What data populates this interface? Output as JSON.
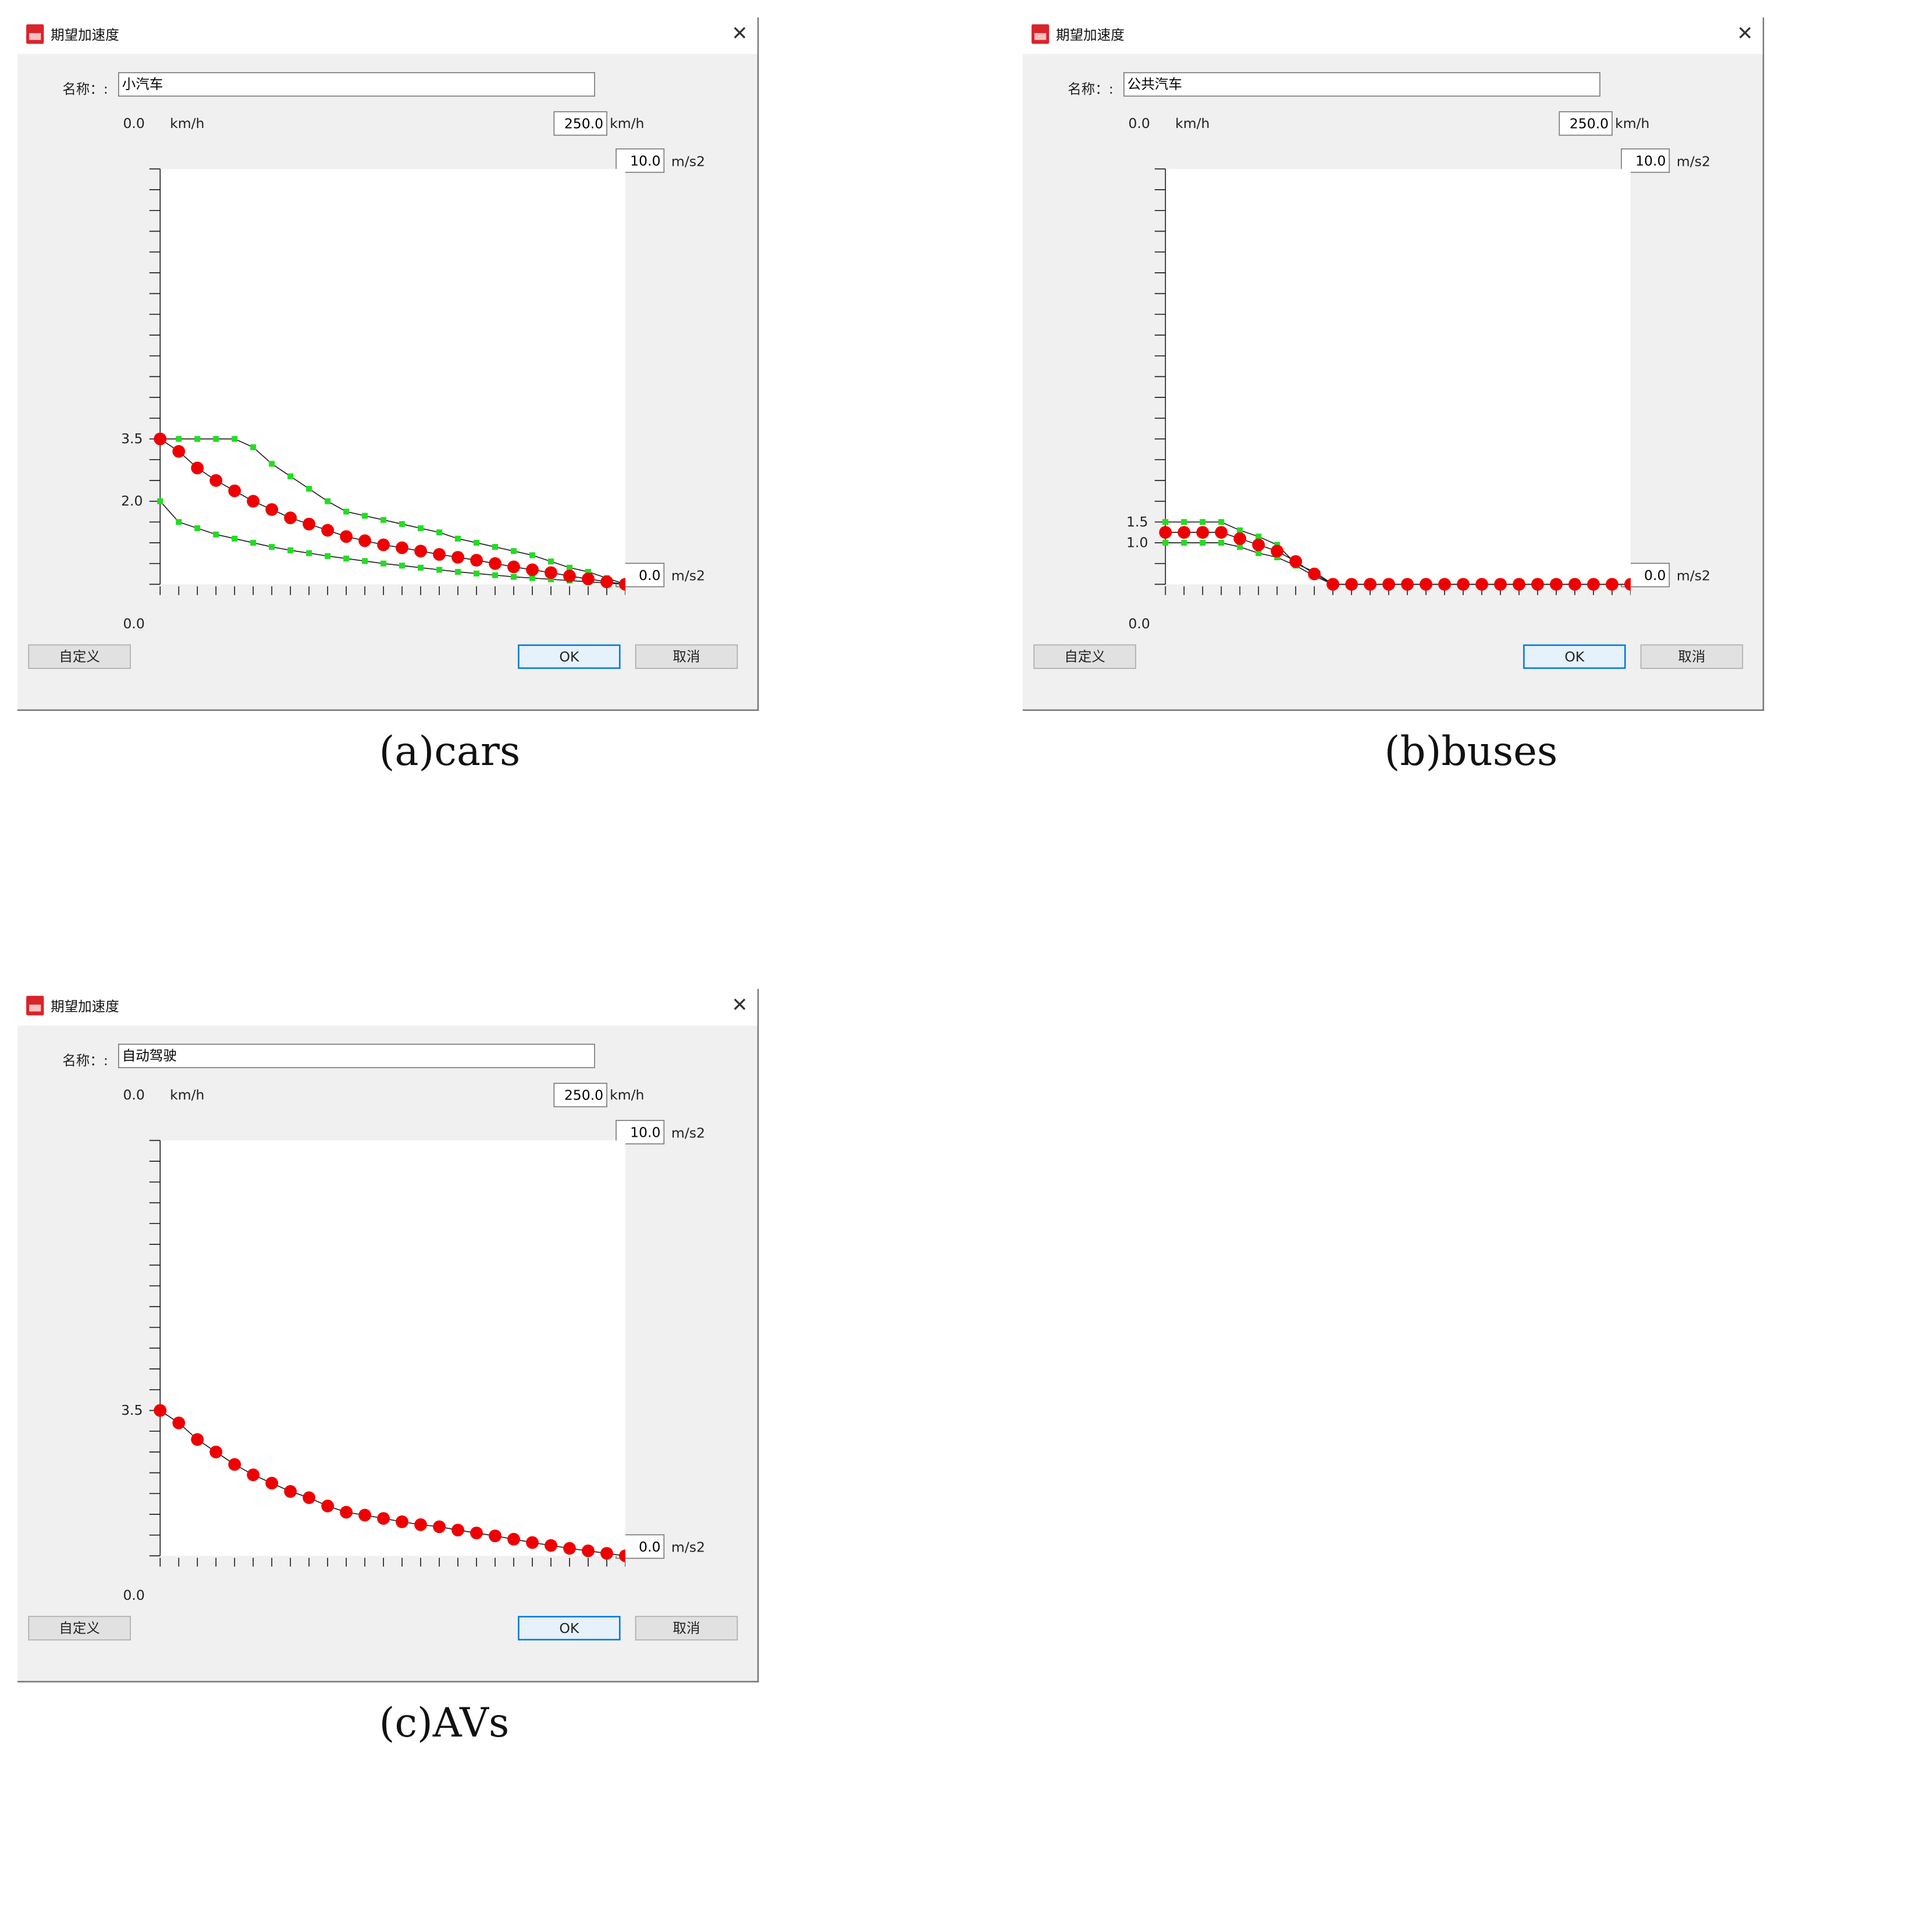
{
  "dialog": {
    "title": "期望加速度",
    "close_glyph": "✕",
    "name_label": "名称：:",
    "speed_min_label": "0.0",
    "speed_unit": "km/h",
    "speed_max_value": "250.0",
    "accel_max_value": "10.0",
    "accel_min_value": "0.0",
    "accel_unit": "m/s2",
    "x_origin_label": "0.0",
    "custom_button": "自定义",
    "ok_button": "OK",
    "cancel_button": "取消"
  },
  "panels": [
    {
      "name_value": "小汽车",
      "caption": "(a)cars",
      "ytick_labels": [
        {
          "text": "3.5",
          "value": 3.5
        },
        {
          "text": "2.0",
          "value": 2.0
        }
      ]
    },
    {
      "name_value": "公共汽车",
      "caption": "(b)buses",
      "ytick_labels": [
        {
          "text": "1.5",
          "value": 1.5
        },
        {
          "text": "1.0",
          "value": 1.0
        }
      ]
    },
    {
      "name_value": "自动驾驶",
      "caption": "(c)AVs",
      "ytick_labels": [
        {
          "text": "3.5",
          "value": 3.5
        }
      ]
    }
  ],
  "colors": {
    "median_marker": "#ee0000",
    "bound_marker": "#22dd22",
    "curve_line": "#222222",
    "ok_border": "#0078d7",
    "title_icon": "#d9242a"
  },
  "chart_data": [
    {
      "type": "line",
      "x_unit": "km/h",
      "y_unit": "m/s2",
      "xlim": [
        0,
        250
      ],
      "ylim": [
        0,
        10
      ],
      "x": [
        0,
        10,
        20,
        30,
        40,
        50,
        60,
        70,
        80,
        90,
        100,
        110,
        120,
        130,
        140,
        150,
        160,
        170,
        180,
        190,
        200,
        210,
        220,
        230,
        240,
        250
      ],
      "series": [
        {
          "role": "max",
          "values": [
            3.5,
            3.5,
            3.5,
            3.5,
            3.5,
            3.3,
            2.9,
            2.6,
            2.3,
            2.0,
            1.75,
            1.65,
            1.55,
            1.45,
            1.35,
            1.25,
            1.1,
            1.0,
            0.9,
            0.8,
            0.7,
            0.55,
            0.4,
            0.3,
            0.15,
            0.0
          ]
        },
        {
          "role": "median",
          "values": [
            3.5,
            3.2,
            2.8,
            2.5,
            2.25,
            2.0,
            1.8,
            1.6,
            1.45,
            1.3,
            1.15,
            1.05,
            0.95,
            0.88,
            0.8,
            0.72,
            0.65,
            0.58,
            0.5,
            0.42,
            0.35,
            0.28,
            0.2,
            0.13,
            0.06,
            0.0
          ]
        },
        {
          "role": "min",
          "values": [
            2.0,
            1.5,
            1.35,
            1.2,
            1.1,
            1.0,
            0.9,
            0.82,
            0.75,
            0.68,
            0.62,
            0.56,
            0.5,
            0.45,
            0.4,
            0.35,
            0.3,
            0.26,
            0.22,
            0.18,
            0.15,
            0.12,
            0.09,
            0.06,
            0.03,
            0.0
          ]
        }
      ]
    },
    {
      "type": "line",
      "x_unit": "km/h",
      "y_unit": "m/s2",
      "xlim": [
        0,
        250
      ],
      "ylim": [
        0,
        10
      ],
      "x": [
        0,
        10,
        20,
        30,
        40,
        50,
        60,
        70,
        80,
        90,
        100,
        110,
        120,
        130,
        140,
        150,
        160,
        170,
        180,
        190,
        200,
        210,
        220,
        230,
        240,
        250
      ],
      "series": [
        {
          "role": "max",
          "values": [
            1.5,
            1.5,
            1.5,
            1.5,
            1.3,
            1.15,
            0.95,
            0.5,
            0.3,
            0.0,
            0,
            0,
            0,
            0,
            0,
            0,
            0,
            0,
            0,
            0,
            0,
            0,
            0,
            0,
            0,
            0
          ]
        },
        {
          "role": "median",
          "values": [
            1.25,
            1.25,
            1.25,
            1.25,
            1.1,
            0.95,
            0.8,
            0.55,
            0.25,
            0.0,
            0,
            0,
            0,
            0,
            0,
            0,
            0,
            0,
            0,
            0,
            0,
            0,
            0,
            0,
            0,
            0
          ]
        },
        {
          "role": "min",
          "values": [
            1.0,
            1.0,
            1.0,
            1.0,
            0.9,
            0.75,
            0.65,
            0.45,
            0.2,
            0.0,
            0,
            0,
            0,
            0,
            0,
            0,
            0,
            0,
            0,
            0,
            0,
            0,
            0,
            0,
            0,
            0
          ]
        }
      ]
    },
    {
      "type": "line",
      "x_unit": "km/h",
      "y_unit": "m/s2",
      "xlim": [
        0,
        250
      ],
      "ylim": [
        0,
        10
      ],
      "x": [
        0,
        10,
        20,
        30,
        40,
        50,
        60,
        70,
        80,
        90,
        100,
        110,
        120,
        130,
        140,
        150,
        160,
        170,
        180,
        190,
        200,
        210,
        220,
        230,
        240,
        250
      ],
      "series": [
        {
          "role": "median",
          "values": [
            3.5,
            3.2,
            2.8,
            2.5,
            2.2,
            1.95,
            1.75,
            1.55,
            1.4,
            1.2,
            1.05,
            0.98,
            0.9,
            0.82,
            0.75,
            0.7,
            0.62,
            0.55,
            0.48,
            0.4,
            0.32,
            0.25,
            0.18,
            0.12,
            0.06,
            0.0
          ]
        }
      ]
    }
  ]
}
